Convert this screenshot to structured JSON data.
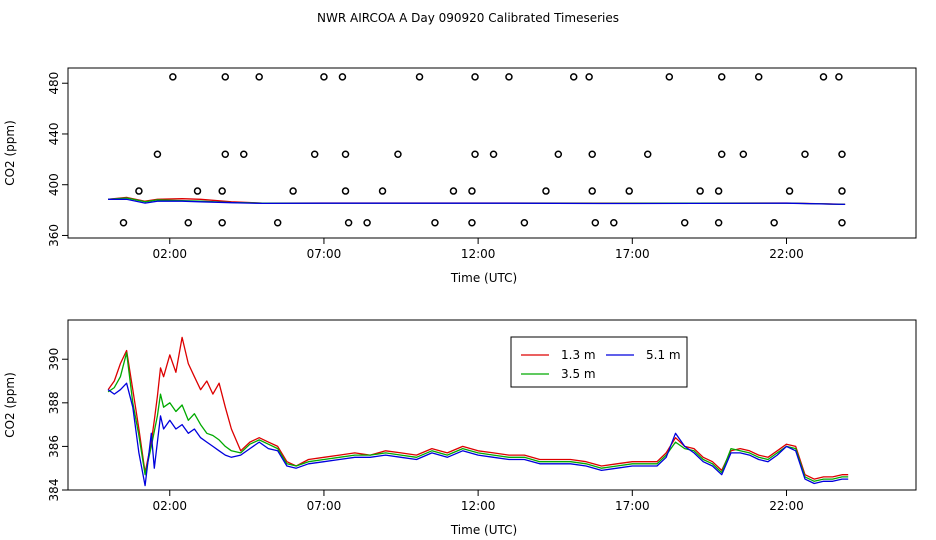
{
  "chart_data": [
    {
      "type": "scatter",
      "title": "NWR AIRCOA A  Day 090920  Calibrated Timeseries",
      "xlabel": "Time (UTC)",
      "ylabel": "CO2 (ppm)",
      "xlim": [
        -1.3,
        26.2
      ],
      "ylim": [
        358,
        492
      ],
      "x_ticks": [
        2,
        7,
        12,
        17,
        22
      ],
      "x_tick_labels": [
        "02:00",
        "07:00",
        "12:00",
        "17:00",
        "22:00"
      ],
      "y_ticks": [
        360,
        400,
        440,
        480
      ],
      "y_tick_labels": [
        "360",
        "400",
        "440",
        "480"
      ],
      "points": {
        "x": [
          2.1,
          3.8,
          4.9,
          7.0,
          7.6,
          10.1,
          11.9,
          13.0,
          15.1,
          15.6,
          18.2,
          19.9,
          21.1,
          23.2,
          23.7,
          1.6,
          3.8,
          4.4,
          6.7,
          7.7,
          9.4,
          11.9,
          12.5,
          14.6,
          15.7,
          17.5,
          19.9,
          20.6,
          22.6,
          23.8,
          1.0,
          2.9,
          3.7,
          6.0,
          7.7,
          8.9,
          11.2,
          11.8,
          14.2,
          15.7,
          16.9,
          19.2,
          19.8,
          22.1,
          23.8,
          0.5,
          2.6,
          3.7,
          5.5,
          7.8,
          8.4,
          10.6,
          11.8,
          13.5,
          15.8,
          16.4,
          18.7,
          19.8,
          21.6,
          23.8
        ],
        "y": [
          485,
          485,
          485,
          485,
          485,
          485,
          485,
          485,
          485,
          485,
          485,
          485,
          485,
          485,
          485,
          424,
          424,
          424,
          424,
          424,
          424,
          424,
          424,
          424,
          424,
          424,
          424,
          424,
          424,
          424,
          395,
          395,
          395,
          395,
          395,
          395,
          395,
          395,
          395,
          395,
          395,
          395,
          395,
          395,
          395,
          370,
          370,
          370,
          370,
          370,
          370,
          370,
          370,
          370,
          370,
          370,
          370,
          370,
          370,
          370
        ]
      },
      "series": [
        {
          "name": "1.3 m",
          "color": "#dd0000",
          "x": [
            0,
            0.6,
            1.2,
            1.6,
            2.4,
            3.0,
            4.0,
            5.0,
            7.0,
            10.0,
            13.0,
            16.0,
            19.0,
            22.0,
            23.9
          ],
          "y": [
            388.5,
            390,
            387,
            388.5,
            389,
            388.5,
            386.5,
            385.5,
            385.6,
            385.6,
            385.6,
            385.4,
            385.5,
            385.6,
            384.6
          ]
        },
        {
          "name": "3.5 m",
          "color": "#00aa00",
          "x": [
            0,
            0.6,
            1.2,
            1.6,
            2.4,
            3.0,
            4.0,
            5.0,
            7.0,
            10.0,
            13.0,
            16.0,
            19.0,
            22.0,
            23.9
          ],
          "y": [
            388.5,
            389.5,
            386.5,
            388,
            387.5,
            387,
            386,
            385.5,
            385.5,
            385.5,
            385.5,
            385.3,
            385.4,
            385.5,
            384.5
          ]
        },
        {
          "name": "5.1 m",
          "color": "#0000dd",
          "x": [
            0,
            0.6,
            1.2,
            1.6,
            2.4,
            3.0,
            4.0,
            5.0,
            7.0,
            10.0,
            13.0,
            16.0,
            19.0,
            22.0,
            23.9
          ],
          "y": [
            388.5,
            388.5,
            385.5,
            387,
            387,
            386.5,
            385.8,
            385.3,
            385.4,
            385.4,
            385.4,
            385.2,
            385.3,
            385.4,
            384.5
          ]
        }
      ]
    },
    {
      "type": "line",
      "xlabel": "Time (UTC)",
      "ylabel": "CO2 (ppm)",
      "xlim": [
        -1.3,
        26.2
      ],
      "ylim": [
        384,
        391.8
      ],
      "x_ticks": [
        2,
        7,
        12,
        17,
        22
      ],
      "x_tick_labels": [
        "02:00",
        "07:00",
        "12:00",
        "17:00",
        "22:00"
      ],
      "y_ticks": [
        384,
        386,
        388,
        390
      ],
      "y_tick_labels": [
        "384",
        "386",
        "388",
        "390"
      ],
      "legend": {
        "position": "top-right",
        "columns": 2
      },
      "series": [
        {
          "name": "1.3 m",
          "color": "#dd0000",
          "x": [
            0,
            0.2,
            0.4,
            0.6,
            0.8,
            1.0,
            1.2,
            1.4,
            1.5,
            1.6,
            1.7,
            1.8,
            2.0,
            2.2,
            2.4,
            2.6,
            2.8,
            3.0,
            3.2,
            3.4,
            3.6,
            3.8,
            4.0,
            4.3,
            4.6,
            4.9,
            5.2,
            5.5,
            5.8,
            6.1,
            6.5,
            7.0,
            7.5,
            8.0,
            8.5,
            9.0,
            9.5,
            10.0,
            10.5,
            11.0,
            11.5,
            12.0,
            12.5,
            13.0,
            13.5,
            14.0,
            14.5,
            15.0,
            15.5,
            16.0,
            16.5,
            17.0,
            17.5,
            17.8,
            18.1,
            18.4,
            18.7,
            19.0,
            19.3,
            19.6,
            19.9,
            20.2,
            20.5,
            20.8,
            21.1,
            21.4,
            21.7,
            22.0,
            22.3,
            22.6,
            22.9,
            23.2,
            23.5,
            23.8,
            24.0
          ],
          "y": [
            388.6,
            389.0,
            389.8,
            390.4,
            388.6,
            386.8,
            384.8,
            386.2,
            387.2,
            388.3,
            389.6,
            389.2,
            390.2,
            389.4,
            391.0,
            389.8,
            389.2,
            388.6,
            389.0,
            388.4,
            388.9,
            387.8,
            386.8,
            385.8,
            386.2,
            386.4,
            386.2,
            386.0,
            385.3,
            385.1,
            385.4,
            385.5,
            385.6,
            385.7,
            385.6,
            385.8,
            385.7,
            385.6,
            385.9,
            385.7,
            386.0,
            385.8,
            385.7,
            385.6,
            385.6,
            385.4,
            385.4,
            385.4,
            385.3,
            385.1,
            385.2,
            385.3,
            385.3,
            385.3,
            385.7,
            386.4,
            386.0,
            385.9,
            385.5,
            385.3,
            384.9,
            385.8,
            385.9,
            385.8,
            385.6,
            385.5,
            385.8,
            386.1,
            386.0,
            384.7,
            384.5,
            384.6,
            384.6,
            384.7,
            384.7
          ]
        },
        {
          "name": "3.5 m",
          "color": "#00aa00",
          "x": [
            0,
            0.2,
            0.4,
            0.6,
            0.8,
            1.0,
            1.2,
            1.4,
            1.5,
            1.6,
            1.7,
            1.8,
            2.0,
            2.2,
            2.4,
            2.6,
            2.8,
            3.0,
            3.2,
            3.4,
            3.6,
            3.8,
            4.0,
            4.3,
            4.6,
            4.9,
            5.2,
            5.5,
            5.8,
            6.1,
            6.5,
            7.0,
            7.5,
            8.0,
            8.5,
            9.0,
            9.5,
            10.0,
            10.5,
            11.0,
            11.5,
            12.0,
            12.5,
            13.0,
            13.5,
            14.0,
            14.5,
            15.0,
            15.5,
            16.0,
            16.5,
            17.0,
            17.5,
            17.8,
            18.1,
            18.4,
            18.7,
            19.0,
            19.3,
            19.6,
            19.9,
            20.2,
            20.5,
            20.8,
            21.1,
            21.4,
            21.7,
            22.0,
            22.3,
            22.6,
            22.9,
            23.2,
            23.5,
            23.8,
            24.0
          ],
          "y": [
            388.5,
            388.7,
            389.2,
            390.3,
            388.0,
            386.5,
            384.7,
            386.0,
            386.7,
            387.4,
            388.4,
            387.8,
            388.0,
            387.6,
            387.9,
            387.2,
            387.5,
            387.0,
            386.6,
            386.5,
            386.3,
            386.0,
            385.8,
            385.7,
            386.1,
            386.3,
            386.1,
            385.9,
            385.2,
            385.1,
            385.3,
            385.4,
            385.5,
            385.6,
            385.6,
            385.7,
            385.6,
            385.5,
            385.8,
            385.6,
            385.9,
            385.7,
            385.6,
            385.5,
            385.5,
            385.3,
            385.3,
            385.3,
            385.2,
            385.0,
            385.1,
            385.2,
            385.2,
            385.2,
            385.6,
            386.2,
            385.9,
            385.8,
            385.4,
            385.2,
            384.8,
            385.9,
            385.8,
            385.7,
            385.5,
            385.4,
            385.7,
            386.0,
            385.9,
            384.6,
            384.4,
            384.5,
            384.5,
            384.6,
            384.6
          ]
        },
        {
          "name": "5.1 m",
          "color": "#0000dd",
          "x": [
            0,
            0.2,
            0.4,
            0.6,
            0.8,
            1.0,
            1.2,
            1.4,
            1.5,
            1.6,
            1.7,
            1.8,
            2.0,
            2.2,
            2.4,
            2.6,
            2.8,
            3.0,
            3.2,
            3.4,
            3.6,
            3.8,
            4.0,
            4.3,
            4.6,
            4.9,
            5.2,
            5.5,
            5.8,
            6.1,
            6.5,
            7.0,
            7.5,
            8.0,
            8.5,
            9.0,
            9.5,
            10.0,
            10.5,
            11.0,
            11.5,
            12.0,
            12.5,
            13.0,
            13.5,
            14.0,
            14.5,
            15.0,
            15.5,
            16.0,
            16.5,
            17.0,
            17.5,
            17.8,
            18.1,
            18.4,
            18.7,
            19.0,
            19.3,
            19.6,
            19.9,
            20.2,
            20.5,
            20.8,
            21.1,
            21.4,
            21.7,
            22.0,
            22.3,
            22.6,
            22.9,
            23.2,
            23.5,
            23.8,
            24.0
          ],
          "y": [
            388.6,
            388.4,
            388.6,
            388.9,
            387.8,
            385.7,
            384.2,
            386.6,
            385.0,
            386.2,
            387.4,
            386.8,
            387.2,
            386.8,
            387.0,
            386.6,
            386.8,
            386.4,
            386.2,
            386.0,
            385.8,
            385.6,
            385.5,
            385.6,
            385.9,
            386.2,
            385.9,
            385.8,
            385.1,
            385.0,
            385.2,
            385.3,
            385.4,
            385.5,
            385.5,
            385.6,
            385.5,
            385.4,
            385.7,
            385.5,
            385.8,
            385.6,
            385.5,
            385.4,
            385.4,
            385.2,
            385.2,
            385.2,
            385.1,
            384.9,
            385.0,
            385.1,
            385.1,
            385.1,
            385.5,
            386.6,
            386.0,
            385.7,
            385.3,
            385.1,
            384.7,
            385.7,
            385.7,
            385.6,
            385.4,
            385.3,
            385.6,
            386.0,
            385.8,
            384.5,
            384.3,
            384.4,
            384.4,
            384.5,
            384.5
          ]
        }
      ]
    }
  ]
}
